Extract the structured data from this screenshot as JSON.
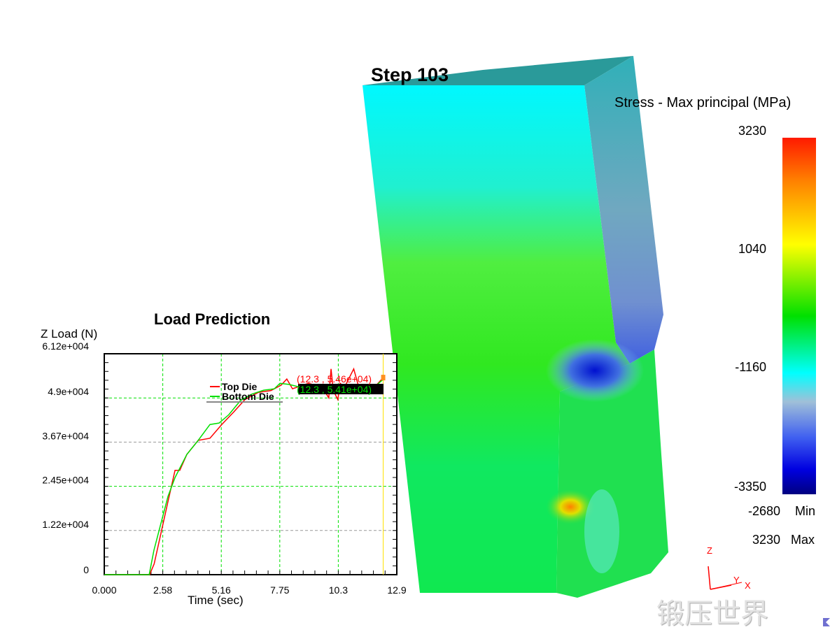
{
  "step_label": "Step  103",
  "legend": {
    "title": "Stress - Max principal (MPa)",
    "ticks": [
      "3230",
      "1040",
      "-1160",
      "-3350"
    ],
    "min_value": "-2680",
    "min_label": "Min",
    "max_value": "3230",
    "max_label": "Max",
    "colors": [
      "#ff1a00",
      "#ffff00",
      "#00e000",
      "#00ffff",
      "#0000e0",
      "#000080"
    ]
  },
  "axes_triad": {
    "z": "Z",
    "y": "Y",
    "x": "X"
  },
  "watermark": "锻压世界",
  "chart_data": {
    "type": "line",
    "title": "Load Prediction",
    "xlabel": "Time (sec)",
    "ylabel": "Z Load (N)",
    "xlim": [
      0,
      12.9
    ],
    "ylim": [
      0,
      61200
    ],
    "x_ticks": [
      "0.000",
      "2.58",
      "5.16",
      "7.75",
      "10.3",
      "12.9"
    ],
    "y_ticks": [
      "0",
      "1.22e+004",
      "2.45e+004",
      "3.67e+004",
      "4.9e+004",
      "6.12e+004"
    ],
    "grid": true,
    "legend_placement": "top-center",
    "series": [
      {
        "name": "Top Die",
        "color": "#ff0000",
        "x": [
          0,
          2.0,
          2.2,
          2.8,
          3.12,
          3.33,
          3.64,
          4.14,
          4.66,
          5.18,
          5.7,
          6.2,
          6.8,
          7.35,
          7.8,
          8.05,
          8.3,
          9.0,
          9.6,
          9.9,
          10.0,
          10.1,
          10.3,
          10.4,
          10.6,
          11.0,
          11.2,
          11.6,
          12.0,
          12.3
        ],
        "y": [
          0,
          0,
          3000,
          20000,
          28900,
          28900,
          33300,
          37200,
          37800,
          41600,
          45000,
          48500,
          50500,
          51000,
          52500,
          54200,
          51500,
          53000,
          52000,
          49000,
          57000,
          51000,
          48500,
          53000,
          52000,
          57000,
          52500,
          52000,
          52500,
          54600
        ]
      },
      {
        "name": "Bottom Die",
        "color": "#00e000",
        "x": [
          0,
          1.98,
          2.19,
          2.81,
          3.12,
          3.64,
          4.14,
          4.66,
          5.06,
          5.49,
          6.0,
          6.5,
          7.03,
          7.5,
          7.75,
          8.15,
          8.6,
          9.2,
          9.8,
          10.4,
          11.0,
          11.6,
          12.0,
          12.3
        ],
        "y": [
          0,
          0,
          6780,
          21700,
          26900,
          33300,
          37200,
          41600,
          42000,
          44300,
          48200,
          50000,
          51100,
          51500,
          53000,
          52700,
          52000,
          52500,
          52000,
          52300,
          52200,
          52000,
          52500,
          54100
        ]
      }
    ],
    "annotations": [
      {
        "text": "(12.3 , 5.46e+04)",
        "color": "#ff0000"
      },
      {
        "text": "(12.3 , 5.41e+04)",
        "color": "#00e000"
      }
    ]
  }
}
